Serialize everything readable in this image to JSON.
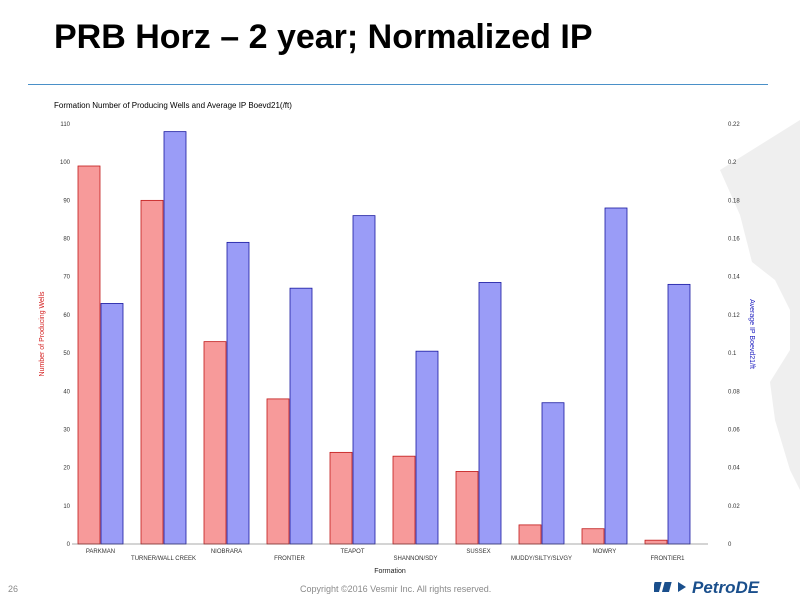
{
  "slide": {
    "title": "PRB Horz – 2 year; Normalized IP",
    "page_number": "26",
    "copyright": "Copyright ©2016 Vesmir Inc. All rights reserved.",
    "logo": {
      "part1": "Petro",
      "part2": "DE"
    }
  },
  "colors": {
    "accent_line": "#4a90c8",
    "wells_fill": "#f79a9a",
    "wells_stroke": "#c01818",
    "ip_fill": "#9a9cf7",
    "ip_stroke": "#1818a0",
    "logo_blue": "#1a4f8c"
  },
  "chart_data": {
    "type": "bar",
    "title": "Formation Number of Producing Wells and Average IP Boevd21(/ft)",
    "xlabel": "Formation",
    "ylabel_left": "Number of Producing Wells",
    "ylabel_right": "Average IP Boevd21/ft",
    "categories": [
      "PARKMAN",
      "TURNER/WALL CREEK",
      "NIOBRARA",
      "FRONTIER",
      "TEAPOT",
      "SHANNON/SDY",
      "SUSSEX",
      "MUDDY/SILTY/SLVGY",
      "MOWRY",
      "FRONTIER1"
    ],
    "series": [
      {
        "name": "Number of Producing Wells",
        "axis": "left",
        "values": [
          99,
          90,
          53,
          38,
          24,
          23,
          19,
          5,
          4,
          1
        ]
      },
      {
        "name": "Average IP Boevd21/ft",
        "axis": "right",
        "values": [
          0.126,
          0.216,
          0.158,
          0.134,
          0.172,
          0.101,
          0.137,
          0.074,
          0.176,
          0.136
        ]
      }
    ],
    "ylim_left": [
      0,
      110
    ],
    "yticks_left": [
      "0",
      "10",
      "20",
      "30",
      "40",
      "50",
      "60",
      "70",
      "80",
      "90",
      "100",
      "110"
    ],
    "ylim_right": [
      0,
      0.22
    ],
    "yticks_right": [
      "0",
      "0.02",
      "0.04",
      "0.06",
      "0.08",
      "0.1",
      "0.12",
      "0.14",
      "0.16",
      "0.18",
      "0.2",
      "0.22"
    ],
    "grid": false,
    "legend": "none"
  }
}
